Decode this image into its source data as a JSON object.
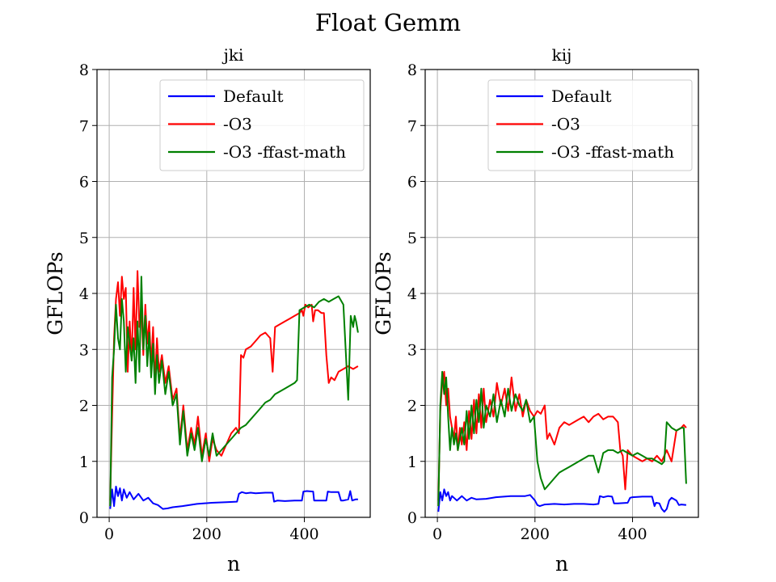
{
  "figure": {
    "title": "Float Gemm"
  },
  "chart_data": [
    {
      "type": "line",
      "title": "jki",
      "xlabel": "n",
      "ylabel": "GFLOPs",
      "xlim": [
        -25,
        535
      ],
      "ylim": [
        0,
        8
      ],
      "xticks": [
        0,
        200,
        400
      ],
      "yticks": [
        0,
        1,
        2,
        3,
        4,
        5,
        6,
        7,
        8
      ],
      "grid": true,
      "legend": "top-right",
      "series": [
        {
          "name": "Default",
          "color": "#0000ff",
          "x": [
            2,
            6,
            10,
            14,
            18,
            22,
            26,
            30,
            36,
            42,
            50,
            60,
            70,
            80,
            90,
            100,
            110,
            120,
            130,
            150,
            180,
            210,
            240,
            262,
            266,
            272,
            280,
            290,
            300,
            320,
            335,
            338,
            345,
            360,
            380,
            395,
            398,
            405,
            418,
            420,
            430,
            445,
            448,
            455,
            470,
            475,
            480,
            490,
            494,
            498,
            505,
            510
          ],
          "y": [
            0.15,
            0.5,
            0.2,
            0.55,
            0.38,
            0.52,
            0.3,
            0.5,
            0.35,
            0.45,
            0.32,
            0.42,
            0.3,
            0.35,
            0.25,
            0.22,
            0.15,
            0.16,
            0.18,
            0.2,
            0.24,
            0.26,
            0.27,
            0.28,
            0.42,
            0.45,
            0.43,
            0.44,
            0.43,
            0.44,
            0.44,
            0.28,
            0.3,
            0.29,
            0.3,
            0.3,
            0.46,
            0.47,
            0.46,
            0.3,
            0.3,
            0.3,
            0.46,
            0.45,
            0.45,
            0.3,
            0.3,
            0.32,
            0.47,
            0.3,
            0.32,
            0.32
          ]
        },
        {
          "name": "-O3",
          "color": "#ff0000",
          "x": [
            2,
            6,
            10,
            14,
            18,
            22,
            26,
            30,
            34,
            38,
            42,
            46,
            50,
            54,
            58,
            62,
            66,
            70,
            74,
            78,
            82,
            86,
            90,
            94,
            98,
            102,
            108,
            115,
            122,
            130,
            138,
            145,
            152,
            160,
            168,
            175,
            182,
            190,
            198,
            205,
            212,
            220,
            230,
            240,
            250,
            260,
            266,
            270,
            275,
            280,
            290,
            300,
            310,
            320,
            330,
            335,
            340,
            350,
            360,
            370,
            380,
            390,
            395,
            398,
            402,
            408,
            415,
            418,
            422,
            428,
            435,
            440,
            445,
            450,
            455,
            462,
            470,
            480,
            490,
            500,
            510
          ],
          "y": [
            0.3,
            1.8,
            3.2,
            3.9,
            4.2,
            3.6,
            4.3,
            3.9,
            4.1,
            2.6,
            3.5,
            2.8,
            4.1,
            3.0,
            4.4,
            3.4,
            3.7,
            2.9,
            3.8,
            3.1,
            3.5,
            2.7,
            3.4,
            2.4,
            3.2,
            2.6,
            2.9,
            2.4,
            2.7,
            2.1,
            2.3,
            1.4,
            2.0,
            1.2,
            1.6,
            1.3,
            1.8,
            1.1,
            1.5,
            1.0,
            1.4,
            1.2,
            1.1,
            1.3,
            1.5,
            1.6,
            1.5,
            2.9,
            2.85,
            3.0,
            3.05,
            3.15,
            3.25,
            3.3,
            3.2,
            2.6,
            3.4,
            3.45,
            3.5,
            3.55,
            3.6,
            3.65,
            3.7,
            3.6,
            3.8,
            3.75,
            3.8,
            3.5,
            3.7,
            3.7,
            3.65,
            3.65,
            2.9,
            2.4,
            2.5,
            2.45,
            2.6,
            2.65,
            2.7,
            2.65,
            2.7
          ]
        },
        {
          "name": "-O3 -ffast-math",
          "color": "#008000",
          "x": [
            2,
            6,
            10,
            14,
            18,
            22,
            26,
            30,
            34,
            38,
            42,
            46,
            50,
            54,
            58,
            62,
            66,
            70,
            74,
            78,
            82,
            86,
            90,
            94,
            98,
            102,
            108,
            115,
            122,
            130,
            138,
            145,
            152,
            160,
            168,
            175,
            182,
            190,
            198,
            205,
            212,
            220,
            230,
            240,
            250,
            260,
            270,
            280,
            290,
            300,
            310,
            320,
            330,
            340,
            350,
            360,
            370,
            380,
            385,
            390,
            400,
            410,
            420,
            430,
            440,
            450,
            460,
            470,
            480,
            490,
            495,
            500,
            503,
            506,
            510
          ],
          "y": [
            0.2,
            2.5,
            3.0,
            3.8,
            3.2,
            3.0,
            3.9,
            3.5,
            2.6,
            3.4,
            3.1,
            2.8,
            3.2,
            2.4,
            3.5,
            2.6,
            4.3,
            3.0,
            3.6,
            2.7,
            3.3,
            2.5,
            3.1,
            2.2,
            2.9,
            2.4,
            2.8,
            2.2,
            2.6,
            2.0,
            2.2,
            1.3,
            1.9,
            1.1,
            1.5,
            1.2,
            1.6,
            1.0,
            1.4,
            1.1,
            1.5,
            1.1,
            1.2,
            1.3,
            1.4,
            1.5,
            1.6,
            1.65,
            1.75,
            1.85,
            1.95,
            2.05,
            2.1,
            2.2,
            2.25,
            2.3,
            2.35,
            2.4,
            2.45,
            3.7,
            3.75,
            3.8,
            3.75,
            3.85,
            3.9,
            3.85,
            3.9,
            3.95,
            3.8,
            2.1,
            3.6,
            3.4,
            3.6,
            3.5,
            3.3
          ]
        }
      ]
    },
    {
      "type": "line",
      "title": "kij",
      "xlabel": "n",
      "ylabel": "GFLOPs",
      "xlim": [
        -25,
        535
      ],
      "ylim": [
        0,
        8
      ],
      "xticks": [
        0,
        200,
        400
      ],
      "yticks": [
        0,
        1,
        2,
        3,
        4,
        5,
        6,
        7,
        8
      ],
      "grid": true,
      "legend": "top-right",
      "series": [
        {
          "name": "Default",
          "color": "#0000ff",
          "x": [
            2,
            6,
            10,
            14,
            18,
            22,
            26,
            30,
            40,
            50,
            60,
            70,
            80,
            100,
            120,
            150,
            180,
            190,
            200,
            205,
            210,
            220,
            240,
            260,
            280,
            300,
            320,
            330,
            333,
            340,
            350,
            358,
            362,
            370,
            390,
            395,
            400,
            420,
            430,
            440,
            445,
            448,
            455,
            460,
            465,
            470,
            475,
            480,
            490,
            495,
            500,
            510
          ],
          "y": [
            0.1,
            0.45,
            0.3,
            0.5,
            0.38,
            0.45,
            0.3,
            0.38,
            0.3,
            0.38,
            0.3,
            0.35,
            0.32,
            0.33,
            0.36,
            0.38,
            0.38,
            0.4,
            0.3,
            0.22,
            0.2,
            0.23,
            0.24,
            0.23,
            0.24,
            0.24,
            0.23,
            0.24,
            0.38,
            0.36,
            0.38,
            0.37,
            0.25,
            0.25,
            0.26,
            0.35,
            0.36,
            0.37,
            0.37,
            0.37,
            0.2,
            0.26,
            0.25,
            0.15,
            0.1,
            0.15,
            0.3,
            0.35,
            0.3,
            0.22,
            0.23,
            0.22
          ]
        },
        {
          "name": "-O3",
          "color": "#ff0000",
          "x": [
            2,
            6,
            10,
            14,
            18,
            22,
            26,
            30,
            34,
            38,
            42,
            46,
            50,
            55,
            60,
            65,
            70,
            75,
            80,
            85,
            90,
            95,
            100,
            108,
            115,
            122,
            130,
            138,
            145,
            152,
            160,
            168,
            175,
            182,
            190,
            198,
            205,
            212,
            220,
            225,
            230,
            240,
            250,
            260,
            270,
            280,
            290,
            300,
            310,
            320,
            330,
            340,
            350,
            360,
            370,
            375,
            380,
            385,
            390,
            400,
            410,
            420,
            430,
            440,
            450,
            460,
            470,
            480,
            490,
            500,
            505,
            510
          ],
          "y": [
            0.3,
            1.9,
            2.4,
            2.6,
            2.0,
            2.3,
            1.8,
            1.6,
            1.4,
            1.8,
            1.2,
            1.6,
            1.3,
            1.7,
            1.2,
            1.9,
            1.4,
            2.1,
            1.5,
            2.2,
            1.6,
            2.3,
            1.7,
            2.1,
            1.8,
            2.4,
            2.0,
            2.3,
            1.9,
            2.5,
            1.9,
            2.2,
            1.8,
            2.1,
            1.9,
            1.8,
            1.9,
            1.85,
            2.0,
            1.4,
            1.5,
            1.3,
            1.6,
            1.7,
            1.65,
            1.7,
            1.75,
            1.8,
            1.7,
            1.8,
            1.85,
            1.75,
            1.8,
            1.8,
            1.7,
            1.2,
            1.1,
            0.5,
            1.2,
            1.1,
            1.05,
            1.0,
            1.05,
            1.0,
            1.1,
            1.0,
            1.2,
            1.0,
            1.55,
            1.6,
            1.65,
            1.6
          ]
        },
        {
          "name": "-O3 -ffast-math",
          "color": "#008000",
          "x": [
            2,
            6,
            10,
            14,
            18,
            22,
            26,
            30,
            34,
            38,
            42,
            46,
            50,
            55,
            60,
            65,
            70,
            75,
            80,
            85,
            90,
            95,
            100,
            108,
            115,
            122,
            130,
            138,
            145,
            152,
            160,
            168,
            175,
            182,
            190,
            198,
            205,
            212,
            220,
            230,
            240,
            250,
            260,
            270,
            280,
            290,
            300,
            310,
            320,
            330,
            340,
            350,
            360,
            370,
            380,
            390,
            400,
            410,
            420,
            430,
            440,
            450,
            460,
            465,
            470,
            475,
            480,
            490,
            500,
            505,
            510
          ],
          "y": [
            0.2,
            2.0,
            2.6,
            2.2,
            2.5,
            1.8,
            1.2,
            1.6,
            1.3,
            1.5,
            1.2,
            1.4,
            1.6,
            1.3,
            1.9,
            1.4,
            2.0,
            1.5,
            2.1,
            1.7,
            2.3,
            1.6,
            2.0,
            1.8,
            2.2,
            1.7,
            2.1,
            1.8,
            2.3,
            1.9,
            2.2,
            2.0,
            1.9,
            2.1,
            1.7,
            1.8,
            1.0,
            0.7,
            0.5,
            0.6,
            0.7,
            0.8,
            0.85,
            0.9,
            0.95,
            1.0,
            1.05,
            1.1,
            1.1,
            0.8,
            1.15,
            1.2,
            1.2,
            1.15,
            1.2,
            1.15,
            1.1,
            1.15,
            1.1,
            1.05,
            1.05,
            1.0,
            0.95,
            1.0,
            1.7,
            1.65,
            1.6,
            1.55,
            1.6,
            1.6,
            0.6
          ]
        }
      ]
    }
  ]
}
